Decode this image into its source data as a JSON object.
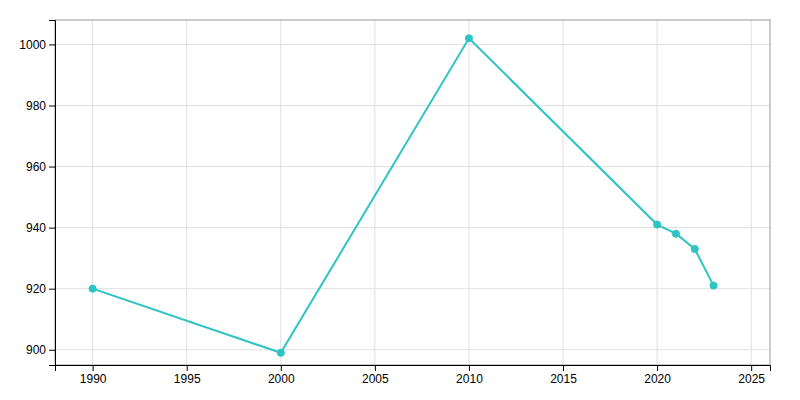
{
  "chart_data": {
    "type": "line",
    "x": [
      1990,
      2000,
      2010,
      2020,
      2021,
      2022,
      2023
    ],
    "values": [
      920,
      899,
      1002,
      941,
      938,
      933,
      921
    ],
    "color": "#2ec4c4",
    "marker": "circle",
    "xlim": [
      1988,
      2026
    ],
    "ylim": [
      895,
      1008
    ],
    "xticks": [
      1990,
      1995,
      2000,
      2005,
      2010,
      2015,
      2020,
      2025
    ],
    "yticks": [
      900,
      920,
      940,
      960,
      980,
      1000
    ],
    "grid": true
  }
}
